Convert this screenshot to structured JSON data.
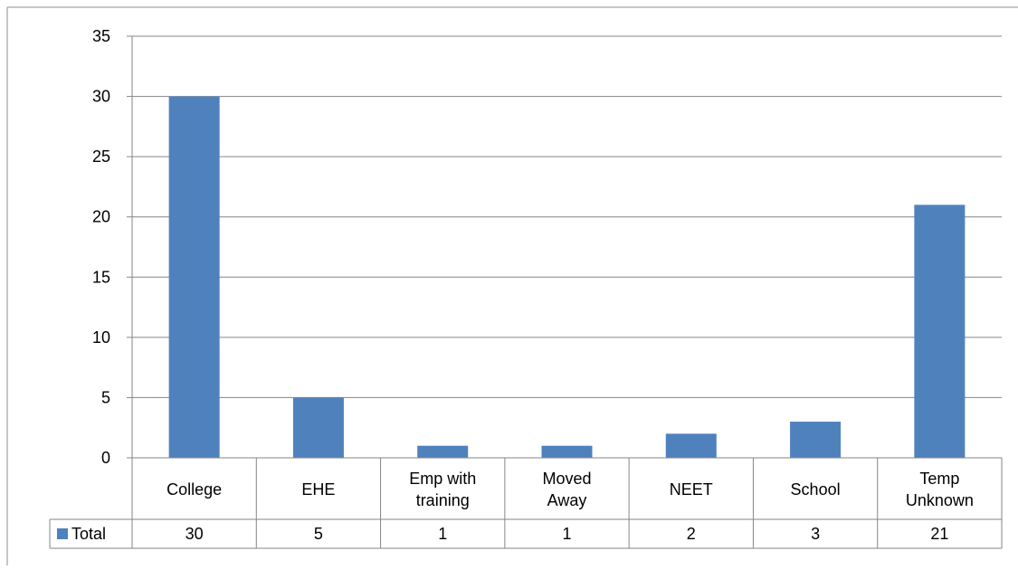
{
  "chart_data": {
    "type": "bar",
    "categories": [
      [
        "College"
      ],
      [
        "EHE"
      ],
      [
        "Emp with",
        "training"
      ],
      [
        "Moved",
        "Away"
      ],
      [
        "NEET"
      ],
      [
        "School"
      ],
      [
        "Temp",
        "Unknown"
      ]
    ],
    "series": [
      {
        "name": "Total",
        "values": [
          30,
          5,
          1,
          1,
          2,
          3,
          21
        ],
        "color": "#4F81BD"
      }
    ],
    "ylim": [
      0,
      35
    ],
    "yticks": [
      0,
      5,
      10,
      15,
      20,
      25,
      30,
      35
    ],
    "grid": true,
    "legend": "data-table",
    "data_table": true
  }
}
